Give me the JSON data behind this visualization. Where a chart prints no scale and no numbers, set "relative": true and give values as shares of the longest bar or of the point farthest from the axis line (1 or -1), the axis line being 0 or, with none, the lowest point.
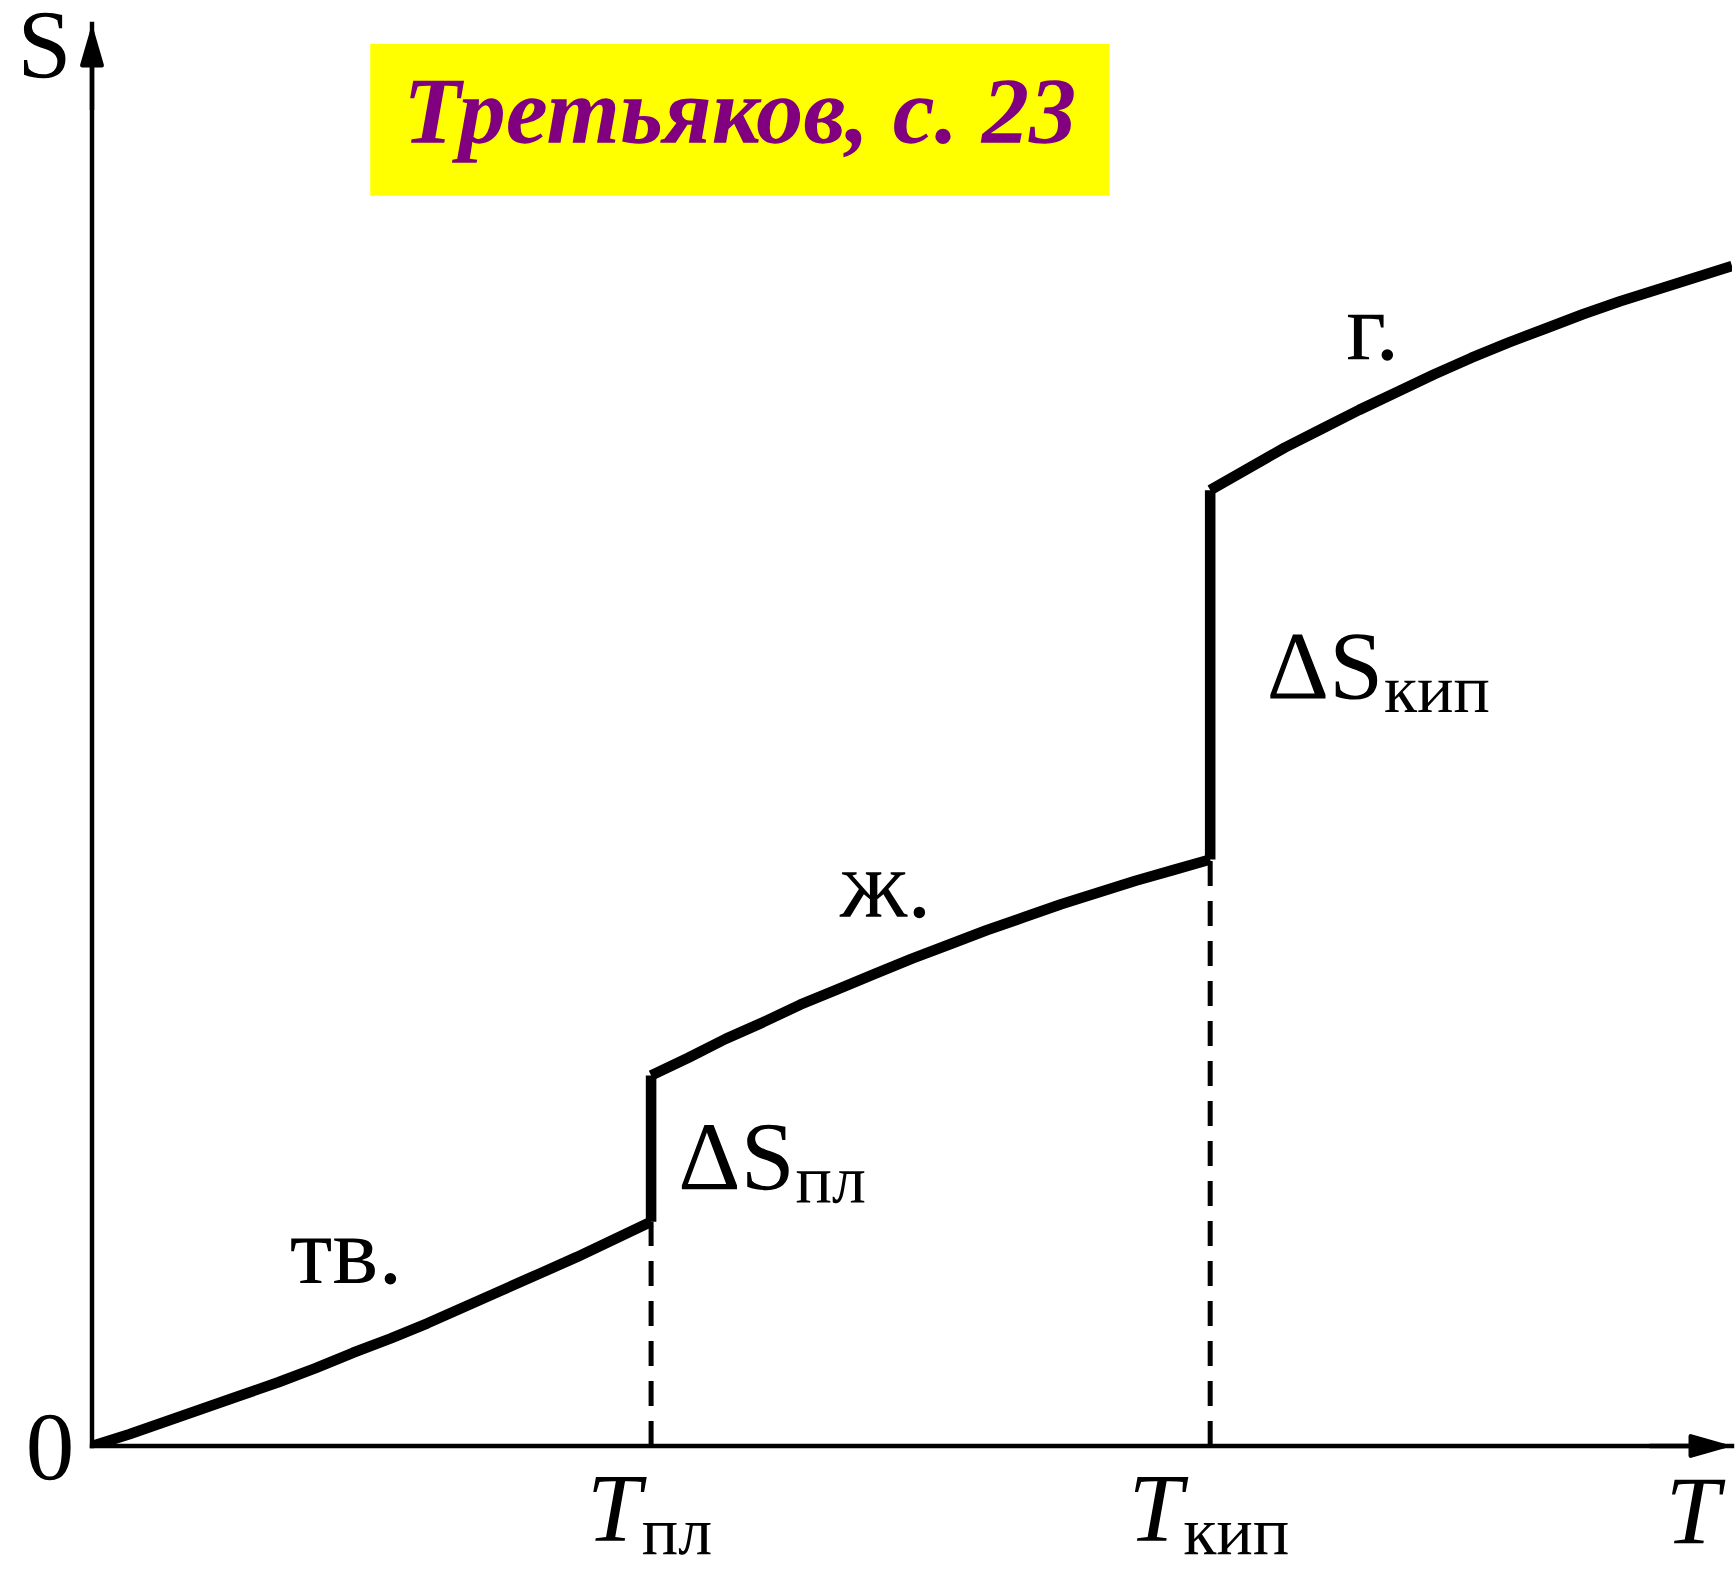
{
  "chart_data": {
    "type": "line",
    "relative": true,
    "xlabel": "T",
    "ylabel": "S",
    "categories": [
      null,
      null,
      null,
      null,
      null,
      null,
      null,
      null,
      null,
      null,
      null,
      null,
      null,
      null,
      null,
      "T$_{пл}$",
      null,
      null,
      null,
      null,
      null,
      null,
      null,
      null,
      null,
      null,
      null,
      null,
      null,
      null,
      "T$_{кип}$",
      null,
      null,
      null,
      null,
      null,
      null,
      null,
      null,
      null,
      null,
      null,
      null,
      null,
      null
    ],
    "series": [
      {
        "color": "#000000",
        "values": [
          0,
          0.01,
          0.021,
          0.032,
          0.043,
          0.054,
          0.066,
          0.079,
          0.091,
          0.104,
          0.118,
          0.132,
          0.146,
          0.16,
          0.175,
          0.19,
          null,
          null,
          null,
          null,
          null,
          null,
          null,
          null,
          null,
          null,
          null,
          null,
          null,
          null,
          null,
          null,
          null,
          null,
          null,
          null,
          null,
          null,
          null,
          null,
          null,
          null,
          null,
          null,
          null
        ]
      },
      {
        "color": "#000000",
        "x": [
          "T$_{пл}$",
          "T$_{пл}$"
        ],
        "values": [
          0.19,
          0.314
        ]
      },
      {
        "color": "#000000",
        "values": [
          null,
          null,
          null,
          null,
          null,
          null,
          null,
          null,
          null,
          null,
          null,
          null,
          null,
          null,
          null,
          0.314,
          0.329,
          0.345,
          0.359,
          0.374,
          0.387,
          0.4,
          0.413,
          0.425,
          0.437,
          0.448,
          0.459,
          0.469,
          0.479,
          0.488,
          0.497,
          null,
          null,
          null,
          null,
          null,
          null,
          null,
          null,
          null,
          null,
          null,
          null,
          null,
          null
        ]
      },
      {
        "color": "#000000",
        "x": [
          "T$_{кип}$",
          "T$_{кип}$"
        ],
        "values": [
          0.497,
          0.81
        ]
      },
      {
        "color": "#000000",
        "values": [
          null,
          null,
          null,
          null,
          null,
          null,
          null,
          null,
          null,
          null,
          null,
          null,
          null,
          null,
          null,
          null,
          null,
          null,
          null,
          null,
          null,
          null,
          null,
          null,
          null,
          null,
          null,
          null,
          null,
          null,
          0.81,
          0.828,
          0.846,
          0.862,
          0.878,
          0.893,
          0.908,
          0.922,
          0.935,
          0.947,
          0.959,
          0.97,
          0.98,
          0.99,
          1.0
        ]
      }
    ],
    "ref_lines": [
      {
        "axis": "x",
        "value": "T$_{пл}$",
        "color": "#000000",
        "line_style": "dashed"
      },
      {
        "axis": "x",
        "value": "T$_{кип}$",
        "color": "#000000",
        "line_style": "dashed"
      }
    ],
    "annotations": [
      "Третьяков, с. 23",
      "0",
      "тв.",
      "ΔS$_{пл}$",
      "ж.",
      "ΔS$_{кип}$",
      "г."
    ]
  }
}
